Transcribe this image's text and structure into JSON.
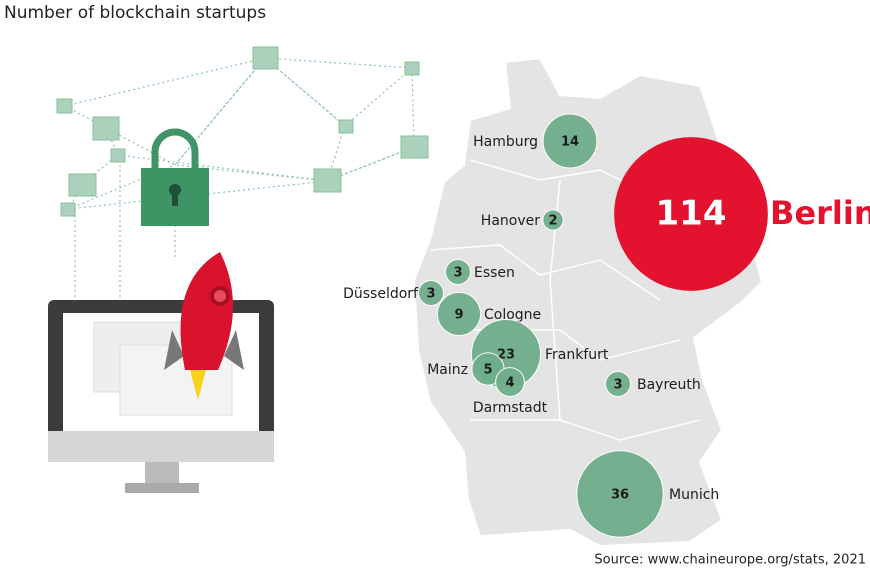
{
  "chart_data": {
    "type": "bubble",
    "title": "Number of blockchain startups",
    "source": "Source: www.chaineurope.org/stats, 2021",
    "categories": [
      "Hamburg",
      "Hanover",
      "Berlin",
      "Essen",
      "Düsseldorf",
      "Cologne",
      "Frankfurt",
      "Mainz",
      "Darmstadt",
      "Bayreuth",
      "Munich"
    ],
    "values": [
      14,
      2,
      114,
      3,
      3,
      9,
      23,
      5,
      4,
      3,
      36
    ],
    "colors": [
      "#6fae8b",
      "#6fae8b",
      "#e3122f",
      "#6fae8b",
      "#6fae8b",
      "#6fae8b",
      "#6fae8b",
      "#6fae8b",
      "#6fae8b",
      "#6fae8b",
      "#6fae8b"
    ]
  }
}
